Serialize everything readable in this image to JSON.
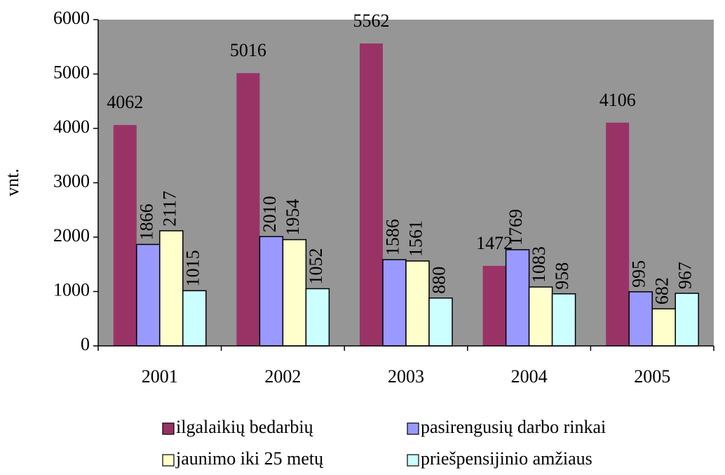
{
  "chart_data": {
    "type": "bar",
    "y_label": "vnt.",
    "categories": [
      "2001",
      "2002",
      "2003",
      "2004",
      "2005"
    ],
    "series": [
      {
        "name": "ilgalaikių bedarbių",
        "color": "#993366",
        "values": [
          4062,
          5016,
          5562,
          1472,
          4106
        ]
      },
      {
        "name": "pasirengusių darbo rinkai",
        "color": "#9999ff",
        "values": [
          1866,
          2010,
          1586,
          1769,
          995
        ]
      },
      {
        "name": "jaunimo iki 25 metų",
        "color": "#ffffcc",
        "values": [
          2117,
          1954,
          1561,
          1083,
          682
        ]
      },
      {
        "name": "priešpensijinio amžiaus",
        "color": "#ccffff",
        "values": [
          1015,
          1052,
          880,
          958,
          967
        ]
      }
    ],
    "ylim": [
      0,
      6000
    ],
    "yticks": [
      0,
      1000,
      2000,
      3000,
      4000,
      5000,
      6000
    ],
    "plot_background": "#969696",
    "legend": "bottom"
  }
}
